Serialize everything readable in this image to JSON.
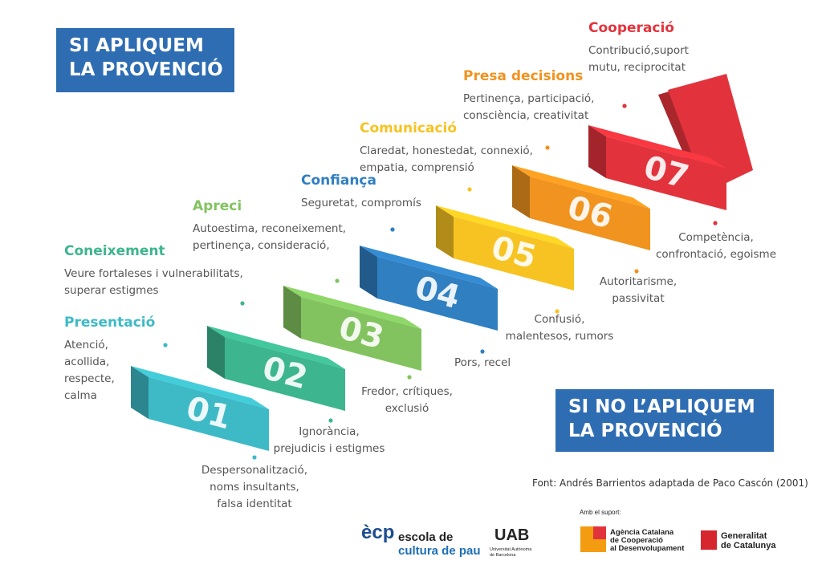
{
  "header_positive": {
    "lines": [
      "SI APLIQUEM",
      "LA PROVENCIÓ"
    ]
  },
  "header_negative": {
    "lines": [
      "SI NO L’APLIQUEM",
      "LA PROVENCIÓ"
    ]
  },
  "steps": [
    {
      "number": "01",
      "title": "Presentació",
      "color": "#3dbac6",
      "positive": [
        "Atenció,",
        "acollida,",
        "respecte,",
        "calma"
      ],
      "negative": [
        "Despersonalització,",
        "noms insultants,",
        "falsa identitat"
      ]
    },
    {
      "number": "02",
      "title": "Coneixement",
      "color": "#3db58f",
      "positive": [
        "Veure fortaleses i vulnerabilitats,",
        "superar estigmes"
      ],
      "negative": [
        "Ignorància,",
        "prejudicis i estigmes"
      ]
    },
    {
      "number": "03",
      "title": "Apreci",
      "color": "#82c35f",
      "positive": [
        "Autoestima, reconeixement,",
        "pertinença, consideració,"
      ],
      "negative": [
        "Fredor, crítiques,",
        "exclusió"
      ]
    },
    {
      "number": "04",
      "title": "Confiança",
      "color": "#2f7fc1",
      "positive": [
        "Seguretat, compromís"
      ],
      "negative": [
        "Pors, recel"
      ]
    },
    {
      "number": "05",
      "title": "Comunicació",
      "color": "#f6c322",
      "positive": [
        "Claredat, honestedat, connexió,",
        "empatia, comprensió"
      ],
      "negative": [
        "Confusió,",
        "malentesos, rumors"
      ]
    },
    {
      "number": "06",
      "title": "Presa decisions",
      "color": "#f0931f",
      "positive": [
        "Pertinença, participació,",
        "consciència, creativitat"
      ],
      "negative": [
        "Autoritarisme,",
        "passivitat"
      ]
    },
    {
      "number": "07",
      "title": "Cooperació",
      "color": "#e2333c",
      "positive": [
        "Contribució,suport",
        "mutu, reciprocitat"
      ],
      "negative": [
        "Competència,",
        "confrontació, egoisme"
      ]
    }
  ],
  "source": "Font: Andrés Barrientos adaptada de Paco Cascón (2001)",
  "logos": {
    "ecp_mark": "ècp",
    "ecp_lines": [
      "escola de",
      "cultura de pau"
    ],
    "uab": "UAB",
    "uab_sub": [
      "Universitat Autònoma",
      "de Barcelona"
    ],
    "support": "Amb el suport:",
    "accd_lines": [
      "Agència Catalana",
      "de Cooperació",
      "al Desenvolupament"
    ],
    "gencat_lines": [
      "Generalitat",
      "de Catalunya"
    ]
  }
}
